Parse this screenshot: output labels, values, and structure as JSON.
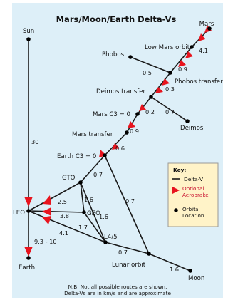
{
  "title": "Mars/Moon/Earth Delta-Vs",
  "nodes": {
    "sun": "Sun",
    "mars": "Mars",
    "low_mars_orbit": "Low Mars orbit",
    "phobos": "Phobos",
    "phobos_transfer": "Phobos transfer",
    "deimos_transfer": "Deimos transfer",
    "deimos": "Deimos",
    "mars_c3": "Mars C3 = 0",
    "mars_transfer": "Mars transfer",
    "earth_c3": "Earth C3 = 0",
    "gto": "GTO",
    "geo": "GEO",
    "leo": "LEO",
    "l4_5": "L4/5",
    "lunar_orbit": "Lunar orbit",
    "moon": "Moon",
    "earth": "Earth"
  },
  "delta_v": {
    "sun_leo": "30",
    "mars_lmo": "4.1",
    "lmo_phobos_tr": "0.9",
    "phobos_phobos_tr": "0.5",
    "phobos_tr_deimos_tr": "0.3",
    "deimos_tr_c3": "0.2",
    "deimos_tr_deimos": "0.7",
    "c3_mars_tr": "0.9",
    "mars_tr_earth_c3": "0.6",
    "earth_c3_gto": "0.7",
    "earth_c3_lunar": "0.7",
    "gto_leo": "2.5",
    "gto_geo": "1.6",
    "gto_l45": "1.6",
    "leo_geo": "3.8",
    "geo_l45": "1.7",
    "leo_l45": "4.1",
    "l45_lunar": "0.7",
    "lunar_moon": "1.6",
    "leo_earth": "9.3 - 10"
  },
  "key": {
    "heading": "Key:",
    "delta_v": "Delta-V",
    "optional_aerobrake": "Optional Aerobrake",
    "orbital_location": "Orbital Location"
  },
  "footnote": {
    "line1": "N.B. Not all possible routes are shown.",
    "line2": "Delta-Vs are in km/s and are approximate"
  },
  "colors": {
    "background": "#ddeff8",
    "line": "#1a1a1a",
    "arrow": "#e8141e",
    "key_box": "#fff3c8",
    "node": "#000000"
  }
}
